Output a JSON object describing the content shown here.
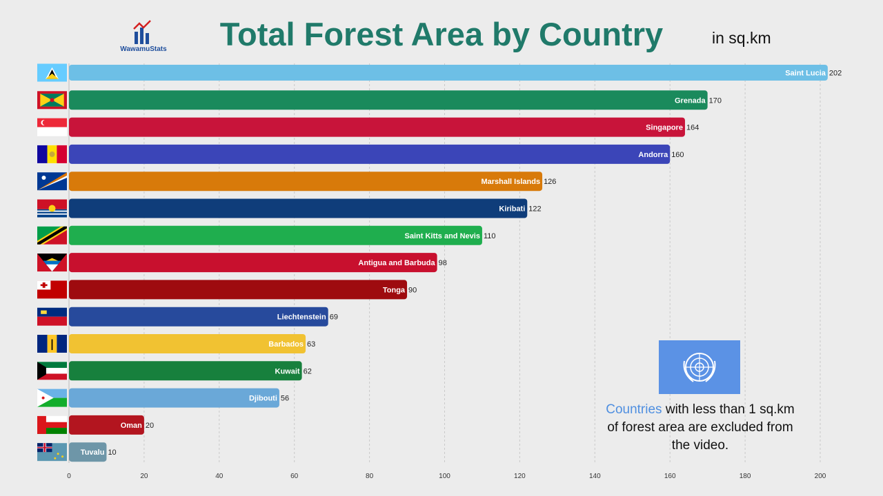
{
  "header": {
    "title": "Total Forest Area by Country",
    "unit": "in sq.km",
    "brand": "WawamuStats"
  },
  "note": {
    "highlight": "Countries",
    "line1": "with less than 1 sq.km",
    "line2": "of forest area are excluded from",
    "line3": "the video."
  },
  "colors": {
    "background": "#ececec",
    "title": "#207a6a",
    "highlight": "#4f8fe0",
    "un_flag": "#5b92e5"
  },
  "chart_data": {
    "type": "bar",
    "orientation": "horizontal",
    "title": "Total Forest Area by Country",
    "unit": "in sq.km",
    "xlim": [
      0,
      200
    ],
    "xticks": [
      0,
      20,
      40,
      60,
      80,
      100,
      120,
      140,
      160,
      180,
      200
    ],
    "grid": "vertical dashed",
    "categories": [
      "Saint Lucia",
      "Grenada",
      "Singapore",
      "Andorra",
      "Marshall Islands",
      "Kiribati",
      "Saint Kitts and Nevis",
      "Antigua and Barbuda",
      "Tonga",
      "Liechtenstein",
      "Barbados",
      "Kuwait",
      "Djibouti",
      "Oman",
      "Tuvalu"
    ],
    "values": [
      202,
      170,
      164,
      160,
      126,
      122,
      110,
      98,
      90,
      69,
      63,
      62,
      56,
      20,
      10
    ],
    "bar_colors": [
      "#6dbfe6",
      "#1a8a5c",
      "#c8143a",
      "#3b45b8",
      "#d87a0a",
      "#0f3d7a",
      "#1fae4e",
      "#c8102e",
      "#9e0b0f",
      "#274a9c",
      "#f1c232",
      "#17803d",
      "#6aa8d8",
      "#b3151f",
      "#6e96a8"
    ],
    "flag_icons": [
      "saint-lucia-flag",
      "grenada-flag",
      "singapore-flag",
      "andorra-flag",
      "marshall-islands-flag",
      "kiribati-flag",
      "saint-kitts-and-nevis-flag",
      "antigua-and-barbuda-flag",
      "tonga-flag",
      "liechtenstein-flag",
      "barbados-flag",
      "kuwait-flag",
      "djibouti-flag",
      "oman-flag",
      "tuvalu-flag"
    ]
  }
}
